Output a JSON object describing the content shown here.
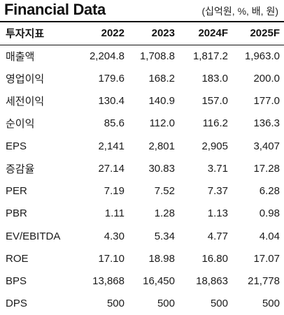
{
  "header": {
    "title": "Financial Data",
    "unit_note": "(십억원, %, 배, 원)"
  },
  "table": {
    "columns": [
      "투자지표",
      "2022",
      "2023",
      "2024F",
      "2025F"
    ],
    "rows": [
      {
        "label": "매출액",
        "values": [
          "2,204.8",
          "1,708.8",
          "1,817.2",
          "1,963.0"
        ]
      },
      {
        "label": "영업이익",
        "values": [
          "179.6",
          "168.2",
          "183.0",
          "200.0"
        ]
      },
      {
        "label": "세전이익",
        "values": [
          "130.4",
          "140.9",
          "157.0",
          "177.0"
        ]
      },
      {
        "label": "순이익",
        "values": [
          "85.6",
          "112.0",
          "116.2",
          "136.3"
        ]
      },
      {
        "label": "EPS",
        "values": [
          "2,141",
          "2,801",
          "2,905",
          "3,407"
        ]
      },
      {
        "label": "증감율",
        "values": [
          "27.14",
          "30.83",
          "3.71",
          "17.28"
        ]
      },
      {
        "label": "PER",
        "values": [
          "7.19",
          "7.52",
          "7.37",
          "6.28"
        ]
      },
      {
        "label": "PBR",
        "values": [
          "1.11",
          "1.28",
          "1.13",
          "0.98"
        ]
      },
      {
        "label": "EV/EBITDA",
        "values": [
          "4.30",
          "5.34",
          "4.77",
          "4.04"
        ]
      },
      {
        "label": "ROE",
        "values": [
          "17.10",
          "18.98",
          "16.80",
          "17.07"
        ]
      },
      {
        "label": "BPS",
        "values": [
          "13,868",
          "16,450",
          "18,863",
          "21,778"
        ]
      },
      {
        "label": "DPS",
        "values": [
          "500",
          "500",
          "500",
          "500"
        ]
      }
    ]
  }
}
